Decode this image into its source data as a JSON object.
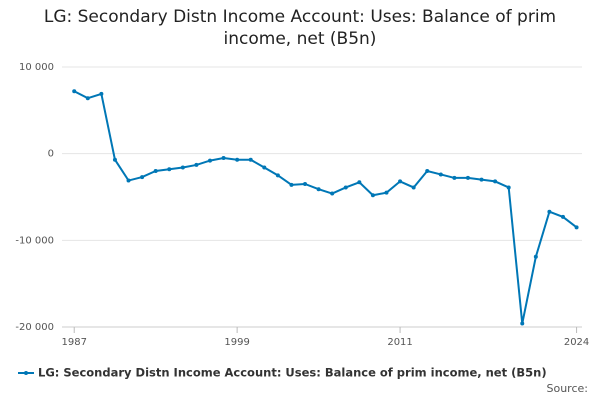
{
  "chart_data": {
    "type": "line",
    "title": "LG: Secondary Distn Income Account: Uses: Balance of prim income, net (B5n)",
    "x": [
      1987,
      1988,
      1989,
      1990,
      1991,
      1992,
      1993,
      1994,
      1995,
      1996,
      1997,
      1998,
      1999,
      2000,
      2001,
      2002,
      2003,
      2004,
      2005,
      2006,
      2007,
      2008,
      2009,
      2010,
      2011,
      2012,
      2013,
      2014,
      2015,
      2016,
      2017,
      2018,
      2019,
      2020,
      2021,
      2022,
      2023,
      2024
    ],
    "series": [
      {
        "name": "LG: Secondary Distn Income Account: Uses: Balance of prim income, net (B5n)",
        "color": "#0077b6",
        "values": [
          7200,
          6400,
          6900,
          -700,
          -3100,
          -2700,
          -2000,
          -1800,
          -1600,
          -1300,
          -800,
          -500,
          -700,
          -700,
          -1600,
          -2500,
          -3600,
          -3500,
          -4100,
          -4600,
          -3900,
          -3300,
          -4800,
          -4500,
          -3200,
          -3900,
          -2000,
          -2400,
          -2800,
          -2800,
          -3000,
          -3200,
          -3900,
          -19600,
          -11900,
          -6700,
          -7300,
          -8500
        ]
      }
    ],
    "xlim": [
      1986.1,
      2024.4
    ],
    "xticks": [
      1987,
      1999,
      2011,
      2024
    ],
    "ylim": [
      -20000,
      10000
    ],
    "yticks": [
      {
        "value": -20000,
        "label": "-20 000"
      },
      {
        "value": -10000,
        "label": "-10 000"
      },
      0,
      {
        "value": 10000,
        "label": "10 000"
      }
    ],
    "grid": true,
    "legend": "bottom",
    "source": "Source:"
  }
}
